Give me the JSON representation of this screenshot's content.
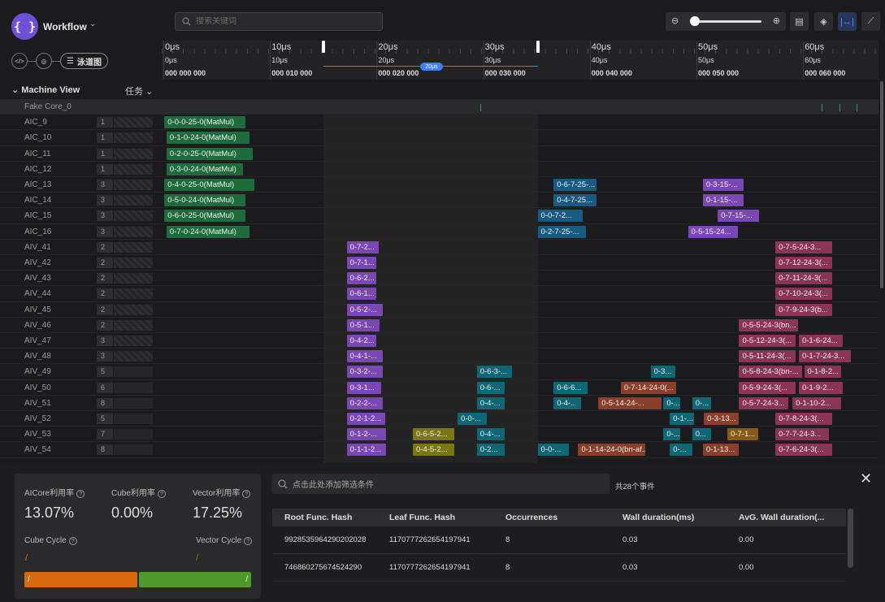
{
  "app": {
    "logo_text": "{ }",
    "title": "Workflow",
    "chevron": "⌄",
    "lane_button": "泳道图"
  },
  "search": {
    "placeholder": "搜索关键词"
  },
  "toolbar": {
    "zoom_out": "⊖",
    "zoom_in": "⊕",
    "zoom_level": 0.0,
    "icons": [
      "message-icon",
      "layers-icon",
      "fit-width-icon",
      "line-chart-icon"
    ]
  },
  "ruler": {
    "ticks": [
      {
        "t1": "0μs",
        "t2": "0μs",
        "t3": "000 000 000"
      },
      {
        "t1": "10μs",
        "t2": "10μs",
        "t3": "000 010 000"
      },
      {
        "t1": "20μs",
        "t2": "20μs",
        "t3": "000 020 000"
      },
      {
        "t1": "30μs",
        "t2": "30μs",
        "t3": "000 030 000"
      },
      {
        "t1": "40μs",
        "t2": "40μs",
        "t3": "000 040 000"
      },
      {
        "t1": "50μs",
        "t2": "50μs",
        "t3": "000 050 000"
      },
      {
        "t1": "60μs",
        "t2": "60μs",
        "t3": "000 060 000"
      }
    ],
    "selection": {
      "start_us": 15.1,
      "end_us": 35.2,
      "badge": "20μs"
    }
  },
  "side": {
    "title": "Machine View",
    "task_label": "任务",
    "task_chevron": "⌄"
  },
  "rows": [
    {
      "name": "Fake Core_0",
      "count": "",
      "tasks": []
    },
    {
      "name": "AIC_9",
      "count": "1",
      "tasks": [
        {
          "l": "0-0-0-25-0(MatMul)",
          "s": 0.1,
          "e": 7.7,
          "c": "green"
        }
      ]
    },
    {
      "name": "AIC_10",
      "count": "1",
      "tasks": [
        {
          "l": "0-1-0-24-0(MatMul)",
          "s": 0.3,
          "e": 8.1,
          "c": "green"
        }
      ]
    },
    {
      "name": "AIC_11",
      "count": "1",
      "tasks": [
        {
          "l": "0-2-0-25-0(MatMul)",
          "s": 0.3,
          "e": 8.4,
          "c": "green"
        }
      ]
    },
    {
      "name": "AIC_12",
      "count": "1",
      "tasks": [
        {
          "l": "0-3-0-24-0(MatMul)",
          "s": 0.3,
          "e": 7.5,
          "c": "green"
        }
      ]
    },
    {
      "name": "AIC_13",
      "count": "3",
      "tasks": [
        {
          "l": "0-4-0-25-0(MatMul)",
          "s": 0.1,
          "e": 8.5,
          "c": "green"
        },
        {
          "l": "0-6-7-25-...",
          "s": 36.6,
          "e": 40.6,
          "c": "blue"
        },
        {
          "l": "0-3-15-...",
          "s": 50.6,
          "e": 54.4,
          "c": "purple"
        }
      ]
    },
    {
      "name": "AIC_14",
      "count": "3",
      "tasks": [
        {
          "l": "0-5-0-24-0(MatMul)",
          "s": 0.1,
          "e": 7.7,
          "c": "green"
        },
        {
          "l": "0-4-7-25...",
          "s": 36.6,
          "e": 40.6,
          "c": "blue"
        },
        {
          "l": "0-1-15-...",
          "s": 50.6,
          "e": 54.4,
          "c": "purple"
        }
      ]
    },
    {
      "name": "AIC_15",
      "count": "3",
      "tasks": [
        {
          "l": "0-6-0-25-0(MatMul)",
          "s": 0.1,
          "e": 7.7,
          "c": "green"
        },
        {
          "l": "0-0-7-2...",
          "s": 35.1,
          "e": 39.3,
          "c": "blue"
        },
        {
          "l": "0-7-15-...",
          "s": 52.0,
          "e": 55.9,
          "c": "purple"
        }
      ]
    },
    {
      "name": "AIC_16",
      "count": "3",
      "tasks": [
        {
          "l": "0-7-0-24-0(MatMul)",
          "s": 0.3,
          "e": 8.1,
          "c": "green"
        },
        {
          "l": "0-2-7-25-...",
          "s": 35.1,
          "e": 39.6,
          "c": "blue"
        },
        {
          "l": "0-5-15-24...",
          "s": 49.2,
          "e": 53.9,
          "c": "purple"
        }
      ]
    },
    {
      "name": "AIV_41",
      "count": "2",
      "tasks": [
        {
          "l": "0-7-2...",
          "s": 17.2,
          "e": 20.2,
          "c": "purple"
        },
        {
          "l": "0-7-5-24-3...",
          "s": 57.4,
          "e": 62.7,
          "c": "maroon"
        }
      ]
    },
    {
      "name": "AIV_42",
      "count": "2",
      "tasks": [
        {
          "l": "0-7-1...",
          "s": 17.2,
          "e": 20.0,
          "c": "purple"
        },
        {
          "l": "0-7-12-24-3(...",
          "s": 57.4,
          "e": 62.7,
          "c": "maroon"
        }
      ]
    },
    {
      "name": "AIV_43",
      "count": "2",
      "tasks": [
        {
          "l": "0-6-2...",
          "s": 17.2,
          "e": 20.0,
          "c": "purple"
        },
        {
          "l": "0-7-11-24-3(...",
          "s": 57.4,
          "e": 62.7,
          "c": "maroon"
        }
      ]
    },
    {
      "name": "AIV_44",
      "count": "2",
      "tasks": [
        {
          "l": "0-6-1...",
          "s": 17.2,
          "e": 20.0,
          "c": "purple"
        },
        {
          "l": "0-7-10-24-3(...",
          "s": 57.4,
          "e": 62.7,
          "c": "maroon"
        }
      ]
    },
    {
      "name": "AIV_45",
      "count": "2",
      "tasks": [
        {
          "l": "0-5-2-...",
          "s": 17.2,
          "e": 20.6,
          "c": "purple"
        },
        {
          "l": "0-7-9-24-3(b...",
          "s": 57.4,
          "e": 62.7,
          "c": "maroon"
        }
      ]
    },
    {
      "name": "AIV_46",
      "count": "2",
      "tasks": [
        {
          "l": "0-5-1...",
          "s": 17.2,
          "e": 20.3,
          "c": "purple"
        },
        {
          "l": "0-5-5-24-3(bn...",
          "s": 54.0,
          "e": 59.5,
          "c": "maroon"
        }
      ]
    },
    {
      "name": "AIV_47",
      "count": "3",
      "tasks": [
        {
          "l": "0-4-2...",
          "s": 17.2,
          "e": 20.0,
          "c": "purple"
        },
        {
          "l": "0-5-12-24-3(...",
          "s": 54.0,
          "e": 59.3,
          "c": "maroon"
        },
        {
          "l": "0-1-6-24...",
          "s": 59.6,
          "e": 63.7,
          "c": "maroon"
        }
      ]
    },
    {
      "name": "AIV_48",
      "count": "3",
      "tasks": [
        {
          "l": "0-4-1-...",
          "s": 17.2,
          "e": 20.6,
          "c": "purple"
        },
        {
          "l": "0-5-11-24-3(...",
          "s": 54.0,
          "e": 59.3,
          "c": "maroon"
        },
        {
          "l": "0-1-7-24-3...",
          "s": 59.6,
          "e": 64.5,
          "c": "maroon"
        }
      ]
    },
    {
      "name": "AIV_49",
      "count": "5",
      "tasks": [
        {
          "l": "0-3-2-...",
          "s": 17.2,
          "e": 20.6,
          "c": "purple"
        },
        {
          "l": "0-6-3-...",
          "s": 29.4,
          "e": 32.7,
          "c": "teal"
        },
        {
          "l": "0-3...",
          "s": 45.7,
          "e": 48.0,
          "c": "teal"
        },
        {
          "l": "0-5-8-24-3(bn-...",
          "s": 54.0,
          "e": 59.9,
          "c": "maroon"
        },
        {
          "l": "0-1-8-2...",
          "s": 60.1,
          "e": 63.6,
          "c": "maroon"
        }
      ]
    },
    {
      "name": "AIV_50",
      "count": "6",
      "tasks": [
        {
          "l": "0-3-1...",
          "s": 17.2,
          "e": 20.4,
          "c": "purple"
        },
        {
          "l": "0-6-...",
          "s": 29.4,
          "e": 32.0,
          "c": "teal"
        },
        {
          "l": "0-6-6...",
          "s": 36.6,
          "e": 39.8,
          "c": "teal"
        },
        {
          "l": "0-7-14-24-0(...",
          "s": 42.9,
          "e": 48.1,
          "c": "rust"
        },
        {
          "l": "0-5-9-24-3(...",
          "s": 54.0,
          "e": 59.3,
          "c": "maroon"
        },
        {
          "l": "0-1-9-2...",
          "s": 59.6,
          "e": 63.7,
          "c": "maroon"
        }
      ]
    },
    {
      "name": "AIV_51",
      "count": "8",
      "tasks": [
        {
          "l": "0-2-2-...",
          "s": 17.2,
          "e": 20.6,
          "c": "purple"
        },
        {
          "l": "0-4-...",
          "s": 29.4,
          "e": 32.0,
          "c": "teal"
        },
        {
          "l": "0-4-...",
          "s": 36.6,
          "e": 39.2,
          "c": "teal"
        },
        {
          "l": "0-5-14-24-...",
          "s": 40.8,
          "e": 46.7,
          "c": "rust"
        },
        {
          "l": "0-...",
          "s": 46.9,
          "e": 48.5,
          "c": "teal"
        },
        {
          "l": "0-...",
          "s": 49.6,
          "e": 51.4,
          "c": "teal"
        },
        {
          "l": "0-5-7-24-3...",
          "s": 54.0,
          "e": 58.6,
          "c": "maroon"
        },
        {
          "l": "0-1-10-2...",
          "s": 59.0,
          "e": 63.6,
          "c": "maroon"
        }
      ]
    },
    {
      "name": "AIV_52",
      "count": "5",
      "tasks": [
        {
          "l": "0-2-1-2...",
          "s": 17.2,
          "e": 20.8,
          "c": "purple"
        },
        {
          "l": "0-0-...",
          "s": 27.6,
          "e": 30.3,
          "c": "teal"
        },
        {
          "l": "0-1-...",
          "s": 47.5,
          "e": 49.8,
          "c": "teal"
        },
        {
          "l": "0-3-13...",
          "s": 50.7,
          "e": 54.0,
          "c": "rust"
        },
        {
          "l": "0-7-8-24-3(...",
          "s": 57.4,
          "e": 62.7,
          "c": "maroon"
        }
      ]
    },
    {
      "name": "AIV_53",
      "count": "7",
      "tasks": [
        {
          "l": "0-1-2-...",
          "s": 17.2,
          "e": 20.9,
          "c": "purple"
        },
        {
          "l": "0-6-5-2...",
          "s": 23.4,
          "e": 27.3,
          "c": "olive"
        },
        {
          "l": "0-4-...",
          "s": 29.4,
          "e": 32.0,
          "c": "teal"
        },
        {
          "l": "0-...",
          "s": 46.9,
          "e": 48.5,
          "c": "teal"
        },
        {
          "l": "0...",
          "s": 49.6,
          "e": 51.4,
          "c": "teal"
        },
        {
          "l": "0-7-1...",
          "s": 52.9,
          "e": 55.8,
          "c": "orange"
        },
        {
          "l": "0-7-7-24-3...",
          "s": 57.4,
          "e": 62.4,
          "c": "maroon"
        }
      ]
    },
    {
      "name": "AIV_54",
      "count": "8",
      "tasks": [
        {
          "l": "0-1-1-2...",
          "s": 17.2,
          "e": 20.9,
          "c": "purple"
        },
        {
          "l": "0-4-5-2...",
          "s": 23.4,
          "e": 27.3,
          "c": "olive"
        },
        {
          "l": "0-2...",
          "s": 29.4,
          "e": 32.0,
          "c": "teal"
        },
        {
          "l": "0-0-...",
          "s": 35.1,
          "e": 38.0,
          "c": "teal"
        },
        {
          "l": "0-1-14-24-0(bn-af...",
          "s": 38.9,
          "e": 45.2,
          "c": "rust"
        },
        {
          "l": "0-...",
          "s": 47.5,
          "e": 49.6,
          "c": "teal"
        },
        {
          "l": "0-1-13...",
          "s": 50.6,
          "e": 54.0,
          "c": "rust"
        },
        {
          "l": "0-7-6-24-3(...",
          "s": 57.4,
          "e": 62.7,
          "c": "maroon"
        }
      ]
    }
  ],
  "stats": {
    "aicore_label": "AICore利用率",
    "aicore_value": "13.07%",
    "cube_label": "Cube利用率",
    "cube_value": "0.00%",
    "vector_label": "Vector利用率",
    "vector_value": "17.25%",
    "cube_cycle_label": "Cube Cycle",
    "cube_cycle_mark": "/",
    "vector_cycle_label": "Vector Cycle",
    "vector_cycle_mark": "/",
    "cube_bar_text": "/",
    "vector_bar_text": "/",
    "colors": {
      "cube": "#d9690e",
      "vector": "#4f9a2a"
    }
  },
  "filter": {
    "placeholder": "点击此处添加筛选条件",
    "count_text": "共28个事件"
  },
  "table": {
    "headers": [
      "Root Func. Hash",
      "Leaf Func. Hash",
      "Occurrences",
      "Wall duration(ms)",
      "AvG. Wall duration(..."
    ],
    "rows": [
      [
        "9928535964290202028",
        "1170777262654197941",
        "8",
        "0.03",
        "0.00"
      ],
      [
        "746860275674524290",
        "1170777262654197941",
        "8",
        "0.03",
        "0.00"
      ]
    ]
  }
}
